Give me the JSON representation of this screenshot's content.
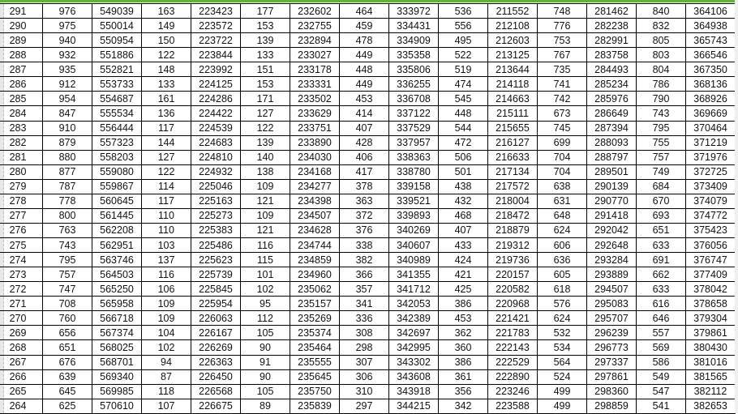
{
  "accent_color": "#6aac46",
  "rows": [
    [
      "291",
      "976",
      "549039",
      "163",
      "223423",
      "177",
      "232602",
      "464",
      "333972",
      "536",
      "211552",
      "748",
      "281462",
      "840",
      "364106"
    ],
    [
      "290",
      "975",
      "550014",
      "149",
      "223572",
      "153",
      "232755",
      "459",
      "334431",
      "556",
      "212108",
      "776",
      "282238",
      "832",
      "364938"
    ],
    [
      "289",
      "940",
      "550954",
      "150",
      "223722",
      "139",
      "232894",
      "478",
      "334909",
      "495",
      "212603",
      "753",
      "282991",
      "805",
      "365743"
    ],
    [
      "288",
      "932",
      "551886",
      "122",
      "223844",
      "133",
      "233027",
      "449",
      "335358",
      "522",
      "213125",
      "767",
      "283758",
      "803",
      "366546"
    ],
    [
      "287",
      "935",
      "552821",
      "148",
      "223992",
      "151",
      "233178",
      "448",
      "335806",
      "519",
      "213644",
      "735",
      "284493",
      "804",
      "367350"
    ],
    [
      "286",
      "912",
      "553733",
      "133",
      "224125",
      "153",
      "233331",
      "449",
      "336255",
      "474",
      "214118",
      "741",
      "285234",
      "786",
      "368136"
    ],
    [
      "285",
      "954",
      "554687",
      "161",
      "224286",
      "171",
      "233502",
      "453",
      "336708",
      "545",
      "214663",
      "742",
      "285976",
      "790",
      "368926"
    ],
    [
      "284",
      "847",
      "555534",
      "136",
      "224422",
      "127",
      "233629",
      "414",
      "337122",
      "448",
      "215111",
      "673",
      "286649",
      "743",
      "369669"
    ],
    [
      "283",
      "910",
      "556444",
      "117",
      "224539",
      "122",
      "233751",
      "407",
      "337529",
      "544",
      "215655",
      "745",
      "287394",
      "795",
      "370464"
    ],
    [
      "282",
      "879",
      "557323",
      "144",
      "224683",
      "139",
      "233890",
      "428",
      "337957",
      "472",
      "216127",
      "699",
      "288093",
      "755",
      "371219"
    ],
    [
      "281",
      "880",
      "558203",
      "127",
      "224810",
      "140",
      "234030",
      "406",
      "338363",
      "506",
      "216633",
      "704",
      "288797",
      "757",
      "371976"
    ],
    [
      "280",
      "877",
      "559080",
      "122",
      "224932",
      "138",
      "234168",
      "417",
      "338780",
      "501",
      "217134",
      "704",
      "289501",
      "749",
      "372725"
    ],
    [
      "279",
      "787",
      "559867",
      "114",
      "225046",
      "109",
      "234277",
      "378",
      "339158",
      "438",
      "217572",
      "638",
      "290139",
      "684",
      "373409"
    ],
    [
      "278",
      "778",
      "560645",
      "117",
      "225163",
      "121",
      "234398",
      "363",
      "339521",
      "432",
      "218004",
      "631",
      "290770",
      "670",
      "374079"
    ],
    [
      "277",
      "800",
      "561445",
      "110",
      "225273",
      "109",
      "234507",
      "372",
      "339893",
      "468",
      "218472",
      "648",
      "291418",
      "693",
      "374772"
    ],
    [
      "276",
      "763",
      "562208",
      "110",
      "225383",
      "121",
      "234628",
      "376",
      "340269",
      "407",
      "218879",
      "624",
      "292042",
      "651",
      "375423"
    ],
    [
      "275",
      "743",
      "562951",
      "103",
      "225486",
      "116",
      "234744",
      "338",
      "340607",
      "433",
      "219312",
      "606",
      "292648",
      "633",
      "376056"
    ],
    [
      "274",
      "795",
      "563746",
      "137",
      "225623",
      "115",
      "234859",
      "382",
      "340989",
      "424",
      "219736",
      "636",
      "293284",
      "691",
      "376747"
    ],
    [
      "273",
      "757",
      "564503",
      "116",
      "225739",
      "101",
      "234960",
      "366",
      "341355",
      "421",
      "220157",
      "605",
      "293889",
      "662",
      "377409"
    ],
    [
      "272",
      "747",
      "565250",
      "106",
      "225845",
      "102",
      "235062",
      "357",
      "341712",
      "425",
      "220582",
      "618",
      "294507",
      "633",
      "378042"
    ],
    [
      "271",
      "708",
      "565958",
      "109",
      "225954",
      "95",
      "235157",
      "341",
      "342053",
      "386",
      "220968",
      "576",
      "295083",
      "616",
      "378658"
    ],
    [
      "270",
      "760",
      "566718",
      "109",
      "226063",
      "112",
      "235269",
      "336",
      "342389",
      "453",
      "221421",
      "624",
      "295707",
      "646",
      "379304"
    ],
    [
      "269",
      "656",
      "567374",
      "104",
      "226167",
      "105",
      "235374",
      "308",
      "342697",
      "362",
      "221783",
      "532",
      "296239",
      "557",
      "379861"
    ],
    [
      "268",
      "651",
      "568025",
      "102",
      "226269",
      "90",
      "235464",
      "298",
      "342995",
      "360",
      "222143",
      "534",
      "296773",
      "569",
      "380430"
    ],
    [
      "267",
      "676",
      "568701",
      "94",
      "226363",
      "91",
      "235555",
      "307",
      "343302",
      "386",
      "222529",
      "564",
      "297337",
      "586",
      "381016"
    ],
    [
      "266",
      "639",
      "569340",
      "87",
      "226450",
      "90",
      "235645",
      "306",
      "343608",
      "361",
      "222890",
      "524",
      "297861",
      "549",
      "381565"
    ],
    [
      "265",
      "645",
      "569985",
      "118",
      "226568",
      "105",
      "235750",
      "310",
      "343918",
      "356",
      "223246",
      "499",
      "298360",
      "547",
      "382112"
    ],
    [
      "264",
      "625",
      "570610",
      "107",
      "226675",
      "89",
      "235839",
      "297",
      "344215",
      "342",
      "223588",
      "499",
      "298859",
      "541",
      "382653"
    ]
  ]
}
